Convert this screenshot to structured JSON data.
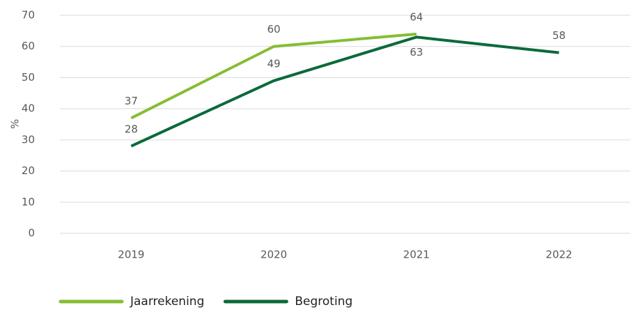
{
  "chart_data": {
    "type": "line",
    "y_label": "%",
    "categories": [
      "2019",
      "2020",
      "2021",
      "2022"
    ],
    "series": [
      {
        "name": "Jaarrekening",
        "color": "#86bd33",
        "values": [
          37,
          60,
          64,
          null
        ]
      },
      {
        "name": "Begroting",
        "color": "#0b6a3a",
        "values": [
          28,
          49,
          63,
          58
        ]
      }
    ],
    "ylim": [
      0,
      70
    ],
    "yticks": [
      0,
      10,
      20,
      30,
      40,
      50,
      60,
      70
    ],
    "grid": true,
    "legend": "bottom"
  }
}
